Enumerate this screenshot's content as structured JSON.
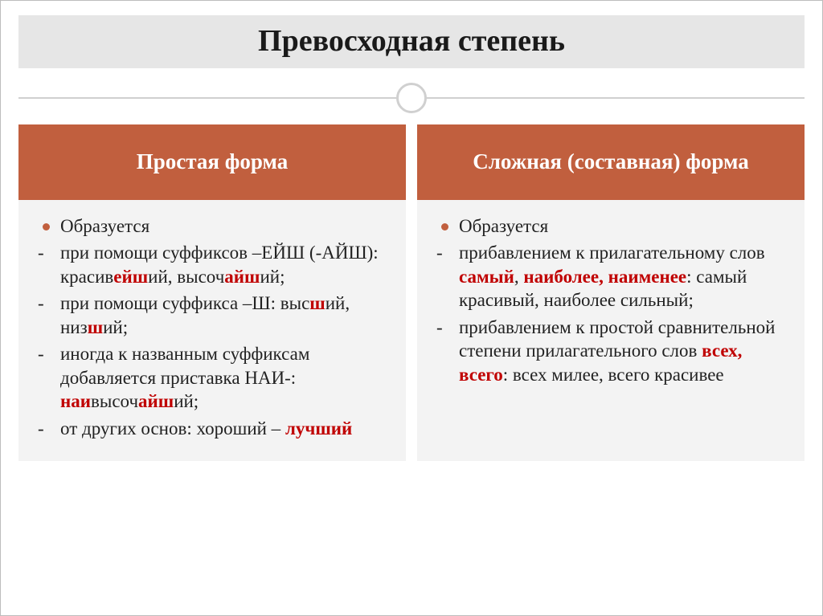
{
  "title": "Превосходная степень",
  "colors": {
    "header_bg": "#c15f3e",
    "body_bg": "#f3f3f3",
    "title_bg": "#e6e6e6",
    "highlight": "#c00000",
    "text": "#222222"
  },
  "left": {
    "header": "Простая форма",
    "items": [
      {
        "type": "bullet",
        "segments": [
          {
            "t": "Образуется"
          }
        ]
      },
      {
        "type": "dash",
        "segments": [
          {
            "t": "при помощи суффиксов –ЕЙШ (-АЙШ): красив"
          },
          {
            "t": "ейш",
            "red": true
          },
          {
            "t": "ий, высоч"
          },
          {
            "t": "айш",
            "red": true
          },
          {
            "t": "ий;"
          }
        ]
      },
      {
        "type": "dash",
        "segments": [
          {
            "t": "при помощи суффикса –Ш: выс"
          },
          {
            "t": "ш",
            "red": true
          },
          {
            "t": "ий, низ"
          },
          {
            "t": "ш",
            "red": true
          },
          {
            "t": "ий;"
          }
        ]
      },
      {
        "type": "dash",
        "segments": [
          {
            "t": "иногда  к названным суффиксам добавляется приставка НАИ-: "
          },
          {
            "t": "наи",
            "red": true
          },
          {
            "t": "высоч"
          },
          {
            "t": "айш",
            "red": true
          },
          {
            "t": "ий;"
          }
        ]
      },
      {
        "type": "dash",
        "segments": [
          {
            "t": "от других основ: хороший – "
          },
          {
            "t": "лучший",
            "red": true
          }
        ]
      }
    ]
  },
  "right": {
    "header": "Сложная (составная) форма",
    "items": [
      {
        "type": "bullet",
        "segments": [
          {
            "t": "Образуется"
          }
        ]
      },
      {
        "type": "dash",
        "segments": [
          {
            "t": "прибавлением к прилагательному слов "
          },
          {
            "t": "самый",
            "red": true
          },
          {
            "t": ", "
          },
          {
            "t": "наиболее, наименее",
            "red": true
          },
          {
            "t": ": самый красивый, наиболее сильный;"
          }
        ]
      },
      {
        "type": "dash",
        "segments": [
          {
            "t": "прибавлением  к простой сравнительной степени прилагательного слов "
          },
          {
            "t": "всех, всего",
            "red": true
          },
          {
            "t": ": всех милее, всего красивее"
          }
        ]
      }
    ]
  }
}
